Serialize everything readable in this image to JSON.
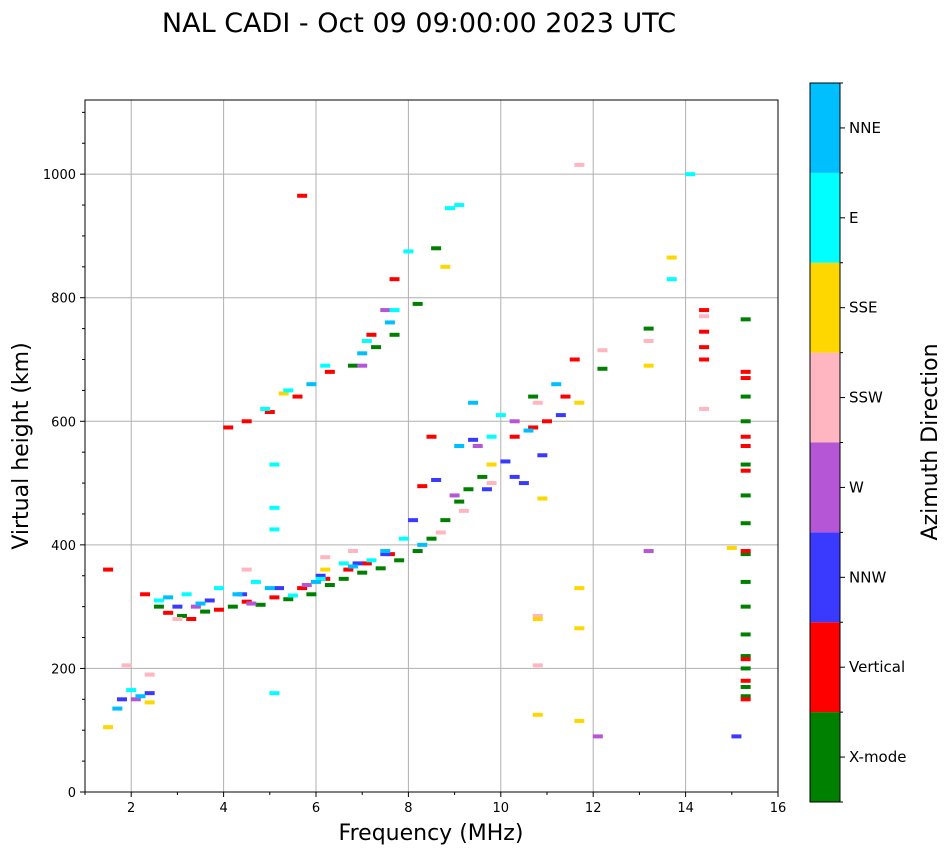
{
  "chart_data": {
    "type": "scatter",
    "title": "NAL CADI - Oct 09 09:00:00 2023 UTC",
    "xlabel": "Frequency (MHz)",
    "ylabel": "Virtual height (km)",
    "xlim": [
      1,
      16
    ],
    "ylim": [
      0,
      1120
    ],
    "xticks": [
      2,
      4,
      6,
      8,
      10,
      12,
      14,
      16
    ],
    "yticks": [
      0,
      200,
      400,
      600,
      800,
      1000
    ],
    "grid": true,
    "colorbar": {
      "label": "Azimuth Direction",
      "categories": [
        "X-mode",
        "Vertical",
        "NNW",
        "W",
        "SSW",
        "SSE",
        "E",
        "NNE"
      ],
      "colors": [
        "#008000",
        "#ff0000",
        "#3a3aff",
        "#b456d6",
        "#ffb6c1",
        "#ffd700",
        "#00ffff",
        "#00bfff"
      ]
    },
    "series": [
      {
        "name": "X-mode",
        "points": [
          [
            2.6,
            300
          ],
          [
            3.1,
            285
          ],
          [
            3.6,
            292
          ],
          [
            4.2,
            300
          ],
          [
            4.8,
            303
          ],
          [
            5.4,
            312
          ],
          [
            5.9,
            320
          ],
          [
            6.3,
            335
          ],
          [
            6.6,
            345
          ],
          [
            7.0,
            355
          ],
          [
            7.4,
            362
          ],
          [
            7.8,
            375
          ],
          [
            8.2,
            390
          ],
          [
            8.5,
            410
          ],
          [
            8.8,
            440
          ],
          [
            9.1,
            470
          ],
          [
            9.3,
            490
          ],
          [
            9.6,
            510
          ],
          [
            6.8,
            690
          ],
          [
            7.3,
            720
          ],
          [
            7.7,
            740
          ],
          [
            8.2,
            790
          ],
          [
            8.6,
            880
          ],
          [
            10.7,
            640
          ],
          [
            12.2,
            685
          ],
          [
            13.2,
            750
          ],
          [
            15.3,
            155
          ],
          [
            15.3,
            170
          ],
          [
            15.3,
            200
          ],
          [
            15.3,
            220
          ],
          [
            15.3,
            255
          ],
          [
            15.3,
            300
          ],
          [
            15.3,
            340
          ],
          [
            15.3,
            385
          ],
          [
            15.3,
            435
          ],
          [
            15.3,
            480
          ],
          [
            15.3,
            530
          ],
          [
            15.3,
            600
          ],
          [
            15.3,
            640
          ],
          [
            15.3,
            765
          ]
        ]
      },
      {
        "name": "Vertical",
        "points": [
          [
            1.5,
            360
          ],
          [
            2.3,
            320
          ],
          [
            2.8,
            290
          ],
          [
            3.3,
            280
          ],
          [
            3.9,
            295
          ],
          [
            4.5,
            308
          ],
          [
            5.1,
            315
          ],
          [
            5.7,
            330
          ],
          [
            6.2,
            345
          ],
          [
            6.7,
            360
          ],
          [
            7.1,
            370
          ],
          [
            7.6,
            385
          ],
          [
            8.3,
            495
          ],
          [
            8.5,
            575
          ],
          [
            4.1,
            590
          ],
          [
            4.5,
            600
          ],
          [
            5.0,
            615
          ],
          [
            5.6,
            640
          ],
          [
            6.3,
            680
          ],
          [
            7.2,
            740
          ],
          [
            7.7,
            830
          ],
          [
            5.7,
            965
          ],
          [
            10.3,
            575
          ],
          [
            10.7,
            590
          ],
          [
            11.0,
            600
          ],
          [
            11.4,
            640
          ],
          [
            11.6,
            700
          ],
          [
            14.4,
            745
          ],
          [
            14.4,
            720
          ],
          [
            14.4,
            780
          ],
          [
            14.4,
            700
          ],
          [
            15.3,
            680
          ],
          [
            15.3,
            670
          ],
          [
            15.3,
            575
          ],
          [
            15.3,
            560
          ],
          [
            15.3,
            520
          ],
          [
            15.3,
            390
          ],
          [
            15.3,
            150
          ],
          [
            15.3,
            180
          ],
          [
            15.3,
            215
          ]
        ]
      },
      {
        "name": "NNW",
        "points": [
          [
            1.8,
            150
          ],
          [
            2.4,
            160
          ],
          [
            3.0,
            300
          ],
          [
            3.7,
            310
          ],
          [
            4.4,
            320
          ],
          [
            5.2,
            330
          ],
          [
            6.1,
            350
          ],
          [
            6.9,
            370
          ],
          [
            7.5,
            385
          ],
          [
            8.1,
            440
          ],
          [
            8.6,
            505
          ],
          [
            9.4,
            570
          ],
          [
            9.7,
            490
          ],
          [
            10.1,
            535
          ],
          [
            10.3,
            510
          ],
          [
            10.5,
            500
          ],
          [
            10.9,
            545
          ],
          [
            11.3,
            610
          ],
          [
            15.1,
            90
          ]
        ]
      },
      {
        "name": "W",
        "points": [
          [
            2.1,
            150
          ],
          [
            3.4,
            300
          ],
          [
            4.6,
            305
          ],
          [
            5.8,
            335
          ],
          [
            7.0,
            690
          ],
          [
            7.5,
            780
          ],
          [
            9.0,
            480
          ],
          [
            9.5,
            560
          ],
          [
            10.3,
            600
          ],
          [
            13.2,
            390
          ],
          [
            12.1,
            90
          ]
        ]
      },
      {
        "name": "SSW",
        "points": [
          [
            1.9,
            205
          ],
          [
            2.4,
            190
          ],
          [
            3.0,
            280
          ],
          [
            4.5,
            360
          ],
          [
            6.2,
            380
          ],
          [
            6.8,
            390
          ],
          [
            8.7,
            420
          ],
          [
            9.2,
            455
          ],
          [
            9.8,
            500
          ],
          [
            10.8,
            630
          ],
          [
            10.8,
            285
          ],
          [
            10.8,
            205
          ],
          [
            12.2,
            715
          ],
          [
            13.2,
            730
          ],
          [
            14.4,
            620
          ],
          [
            14.4,
            770
          ],
          [
            11.7,
            1015
          ]
        ]
      },
      {
        "name": "SSE",
        "points": [
          [
            1.5,
            105
          ],
          [
            2.4,
            145
          ],
          [
            5.3,
            645
          ],
          [
            6.2,
            360
          ],
          [
            8.8,
            850
          ],
          [
            9.8,
            530
          ],
          [
            10.8,
            125
          ],
          [
            10.8,
            280
          ],
          [
            10.9,
            475
          ],
          [
            11.7,
            630
          ],
          [
            11.7,
            330
          ],
          [
            11.7,
            265
          ],
          [
            11.7,
            115
          ],
          [
            13.2,
            690
          ],
          [
            13.7,
            865
          ],
          [
            15.0,
            395
          ]
        ]
      },
      {
        "name": "E",
        "points": [
          [
            2.0,
            165
          ],
          [
            2.6,
            310
          ],
          [
            3.2,
            320
          ],
          [
            3.9,
            330
          ],
          [
            4.7,
            340
          ],
          [
            5.5,
            318
          ],
          [
            6.1,
            345
          ],
          [
            6.6,
            370
          ],
          [
            7.2,
            375
          ],
          [
            7.9,
            410
          ],
          [
            4.9,
            620
          ],
          [
            5.4,
            650
          ],
          [
            6.2,
            690
          ],
          [
            7.1,
            730
          ],
          [
            7.7,
            780
          ],
          [
            8.0,
            875
          ],
          [
            5.1,
            530
          ],
          [
            5.1,
            460
          ],
          [
            5.1,
            425
          ],
          [
            5.1,
            160
          ],
          [
            8.9,
            945
          ],
          [
            9.1,
            950
          ],
          [
            9.8,
            575
          ],
          [
            10.0,
            610
          ],
          [
            13.7,
            830
          ],
          [
            14.1,
            1000
          ]
        ]
      },
      {
        "name": "NNE",
        "points": [
          [
            1.7,
            135
          ],
          [
            2.2,
            155
          ],
          [
            2.8,
            315
          ],
          [
            3.5,
            305
          ],
          [
            4.3,
            320
          ],
          [
            5.0,
            330
          ],
          [
            6.0,
            340
          ],
          [
            6.8,
            365
          ],
          [
            7.5,
            390
          ],
          [
            8.3,
            400
          ],
          [
            5.9,
            660
          ],
          [
            7.0,
            710
          ],
          [
            7.6,
            760
          ],
          [
            9.1,
            560
          ],
          [
            9.4,
            630
          ],
          [
            10.6,
            585
          ],
          [
            11.2,
            660
          ]
        ]
      }
    ]
  }
}
